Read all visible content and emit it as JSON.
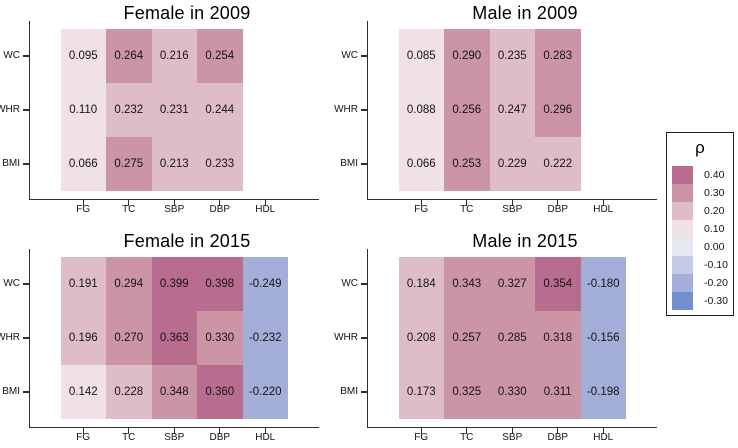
{
  "chart_data": {
    "type": "heatmap",
    "layout": "2x2 faceted correlation heatmaps with shared discrete diverging color legend",
    "rows": [
      "WC",
      "WHR",
      "BMI"
    ],
    "columns": [
      "FG",
      "TC",
      "SBP",
      "DBP",
      "HDL"
    ],
    "panels": [
      {
        "title": "Female in 2009",
        "values": [
          [
            "0.095",
            "0.264",
            "0.216",
            "0.254",
            null
          ],
          [
            "0.110",
            "0.232",
            "0.231",
            "0.244",
            null
          ],
          [
            "0.066",
            "0.275",
            "0.213",
            "0.233",
            null
          ]
        ]
      },
      {
        "title": "Male in 2009",
        "values": [
          [
            "0.085",
            "0.290",
            "0.235",
            "0.283",
            null
          ],
          [
            "0.088",
            "0.256",
            "0.247",
            "0.296",
            null
          ],
          [
            "0.066",
            "0.253",
            "0.229",
            "0.222",
            null
          ]
        ]
      },
      {
        "title": "Female in 2015",
        "values": [
          [
            "0.191",
            "0.294",
            "0.399",
            "0.398",
            "-0.249"
          ],
          [
            "0.196",
            "0.270",
            "0.363",
            "0.330",
            "-0.232"
          ],
          [
            "0.142",
            "0.228",
            "0.348",
            "0.360",
            "-0.220"
          ]
        ]
      },
      {
        "title": "Male in 2015",
        "values": [
          [
            "0.184",
            "0.343",
            "0.327",
            "0.354",
            "-0.180"
          ],
          [
            "0.208",
            "0.257",
            "0.285",
            "0.318",
            "-0.156"
          ],
          [
            "0.173",
            "0.325",
            "0.330",
            "0.311",
            "-0.198"
          ]
        ]
      }
    ],
    "legend": {
      "title": "ρ",
      "position": "right",
      "bins": [
        {
          "label": "0.40",
          "color": "#b96d8e"
        },
        {
          "label": "0.30",
          "color": "#cc95a5"
        },
        {
          "label": "0.20",
          "color": "#dfbdc7"
        },
        {
          "label": "0.10",
          "color": "#f0e1e6"
        },
        {
          "label": "0.00",
          "color": "#e5e8f1"
        },
        {
          "label": "-0.10",
          "color": "#c5cce6"
        },
        {
          "label": "-0.20",
          "color": "#a3afd8"
        },
        {
          "label": "-0.30",
          "color": "#7191cc"
        }
      ]
    },
    "axis_color": "#2e2e2e",
    "background": "#ffffff"
  }
}
